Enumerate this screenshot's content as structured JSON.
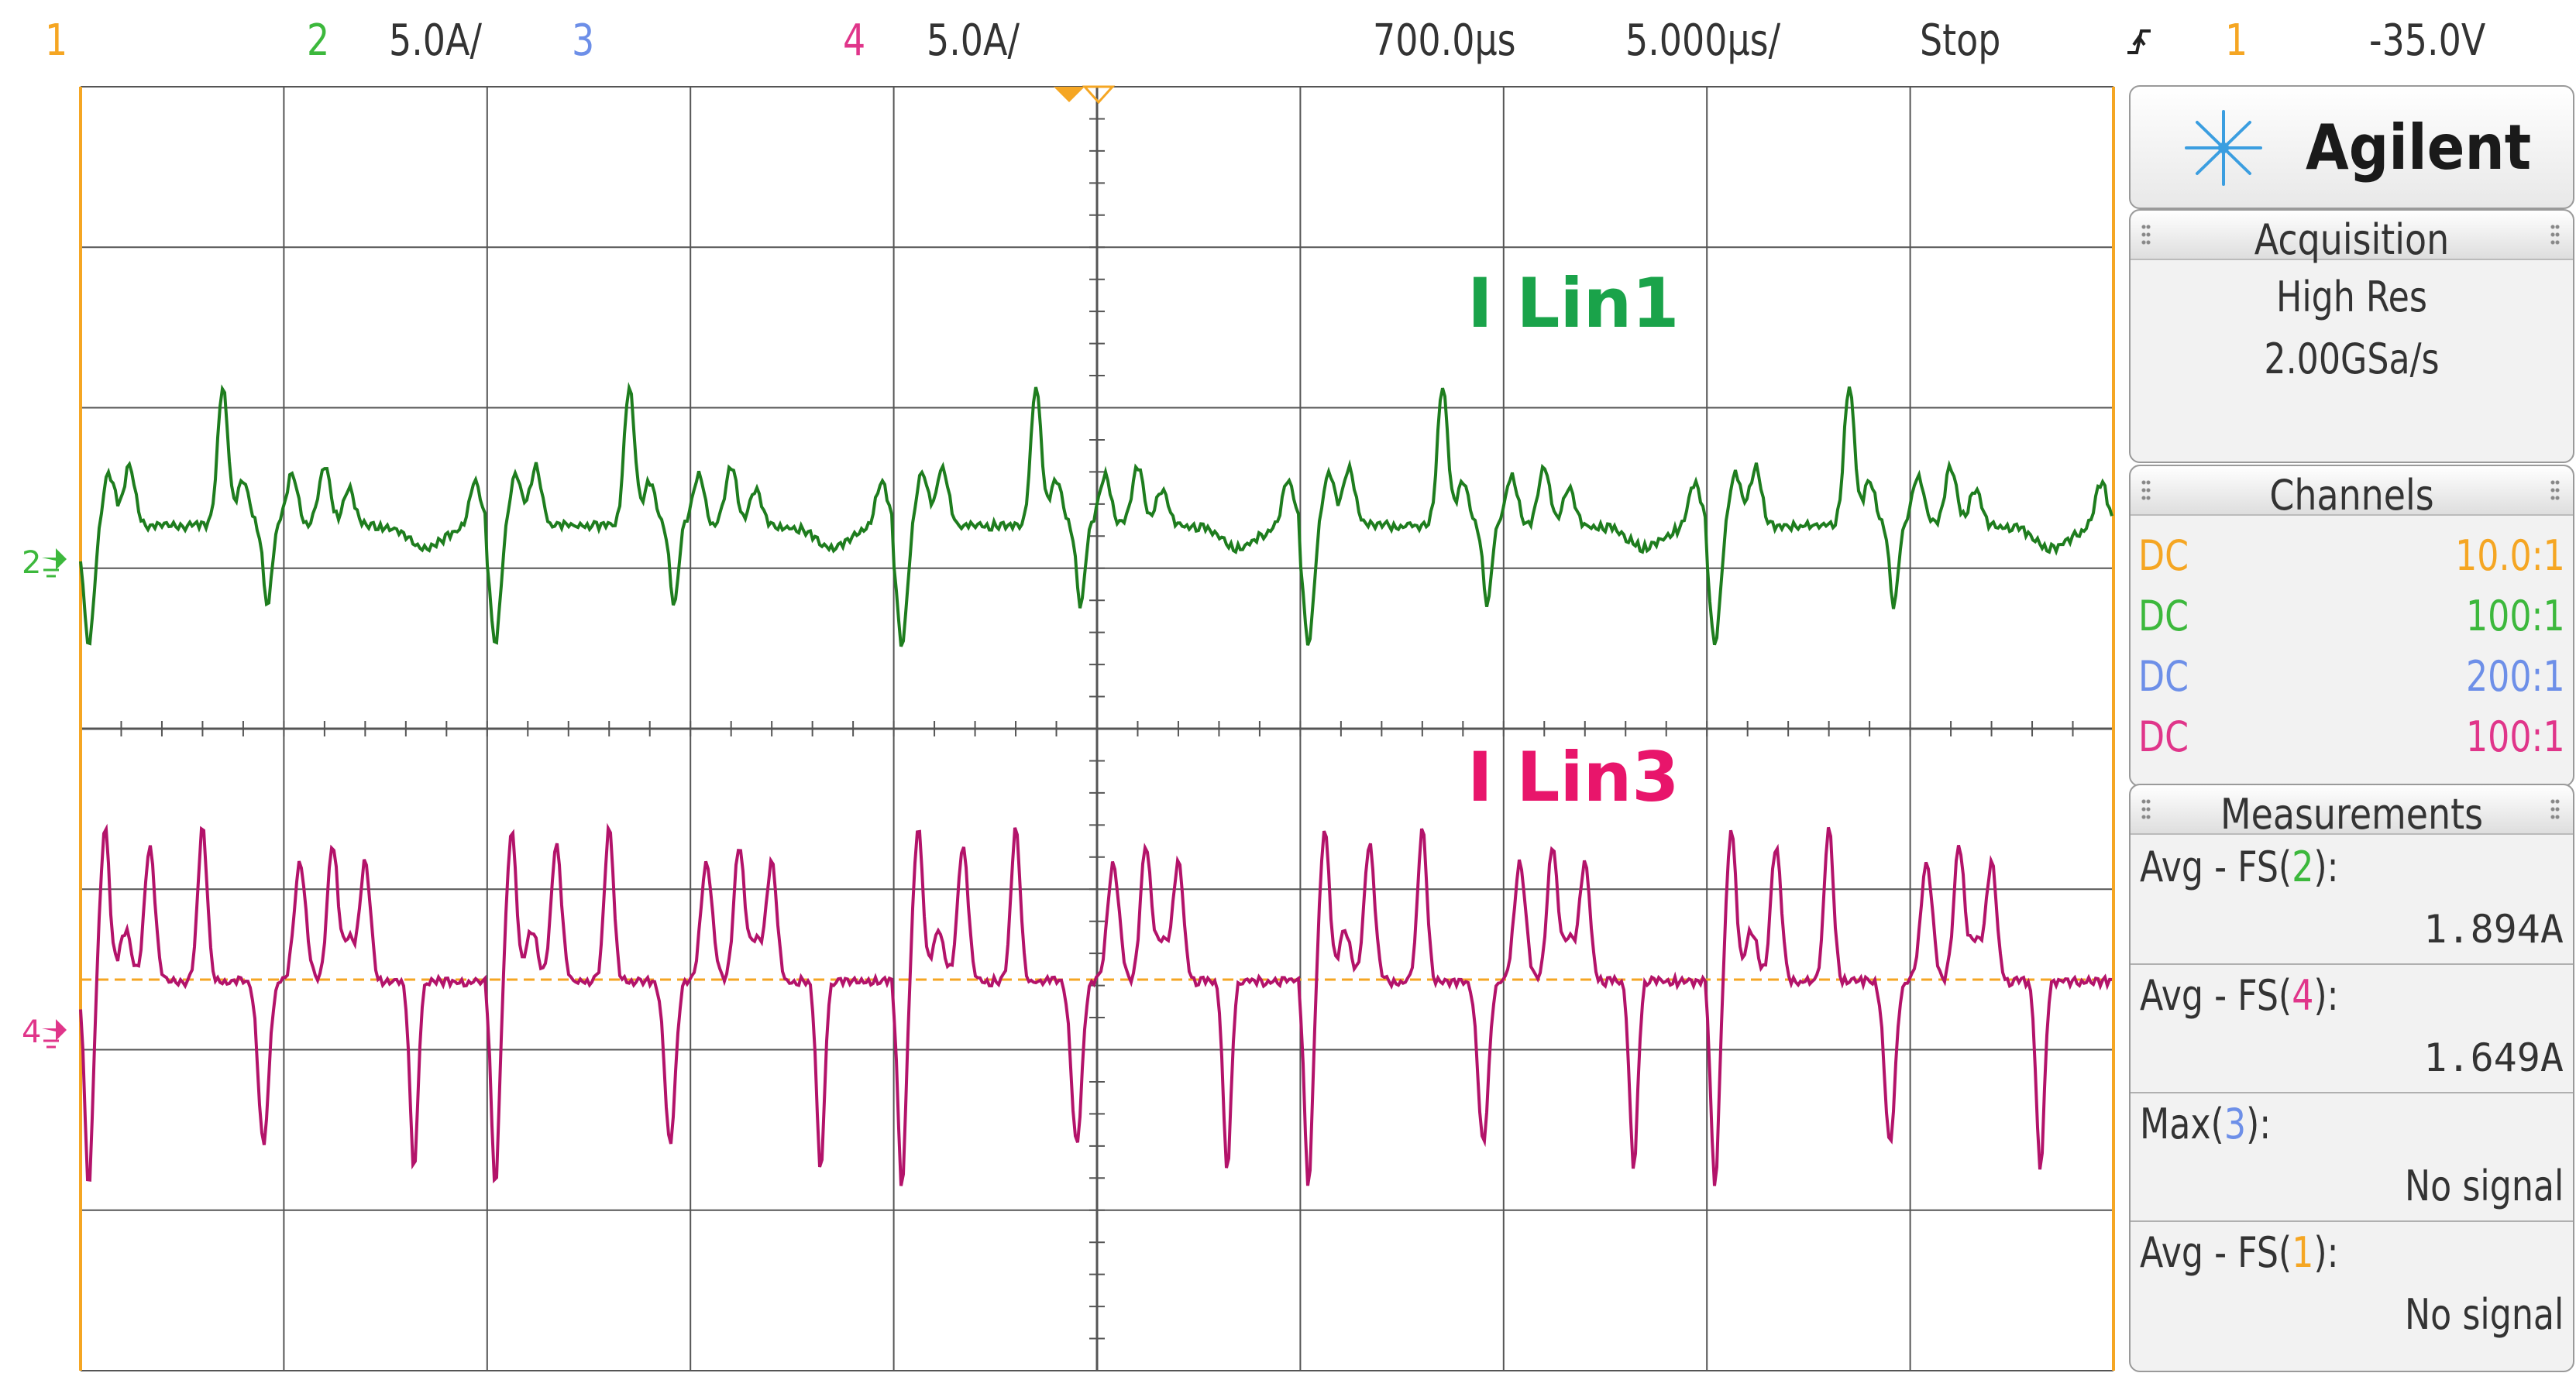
{
  "top_bar": {
    "ch1_num": "1",
    "ch2_num": "2",
    "ch2_scale": "5.0A/",
    "ch3_num": "3",
    "ch4_num": "4",
    "ch4_scale": "5.0A/",
    "time_offset": "700.0µs",
    "time_scale": "5.000µs/",
    "run_state": "Stop",
    "trigger_icon": "trigger-edge-icon",
    "trigger_source": "1",
    "trigger_level": "-35.0V"
  },
  "waveforms": {
    "ch2_label": "I Lin1",
    "ch2_label_color": "#1aa34a",
    "ch4_label": "I Lin3",
    "ch4_label_color": "#e8156b",
    "ch2_marker": "2",
    "ch4_marker": "4",
    "ch2_trace_color": "#1e7d1e",
    "ch4_trace_color": "#b3136a",
    "trigger_level_color": "#f5a623"
  },
  "panel": {
    "brand": "Agilent",
    "brand_icon": "agilent-spark-icon",
    "acquisition": {
      "title": "Acquisition",
      "mode": "High Res",
      "rate": "2.00GSa/s"
    },
    "channels": {
      "title": "Channels",
      "rows": [
        {
          "coupling": "DC",
          "ratio": "10.0:1",
          "color": "#f5a623"
        },
        {
          "coupling": "DC",
          "ratio": "100:1",
          "color": "#3cb83c"
        },
        {
          "coupling": "DC",
          "ratio": "200:1",
          "color": "#6d8fe8"
        },
        {
          "coupling": "DC",
          "ratio": "100:1",
          "color": "#e0358a"
        }
      ]
    },
    "measurements": {
      "title": "Measurements",
      "items": [
        {
          "prefix": "Avg - FS(",
          "ch": "2",
          "suffix": "):",
          "value": "1.894A",
          "ch_color": "#3cb83c"
        },
        {
          "prefix": "Avg - FS(",
          "ch": "4",
          "suffix": "):",
          "value": "1.649A",
          "ch_color": "#e0358a"
        },
        {
          "prefix": "Max(",
          "ch": "3",
          "suffix": "):",
          "value": "No signal",
          "ch_color": "#6d8fe8"
        },
        {
          "prefix": "Avg - FS(",
          "ch": "1",
          "suffix": "):",
          "value": "No signal",
          "ch_color": "#f5a623"
        }
      ]
    }
  }
}
